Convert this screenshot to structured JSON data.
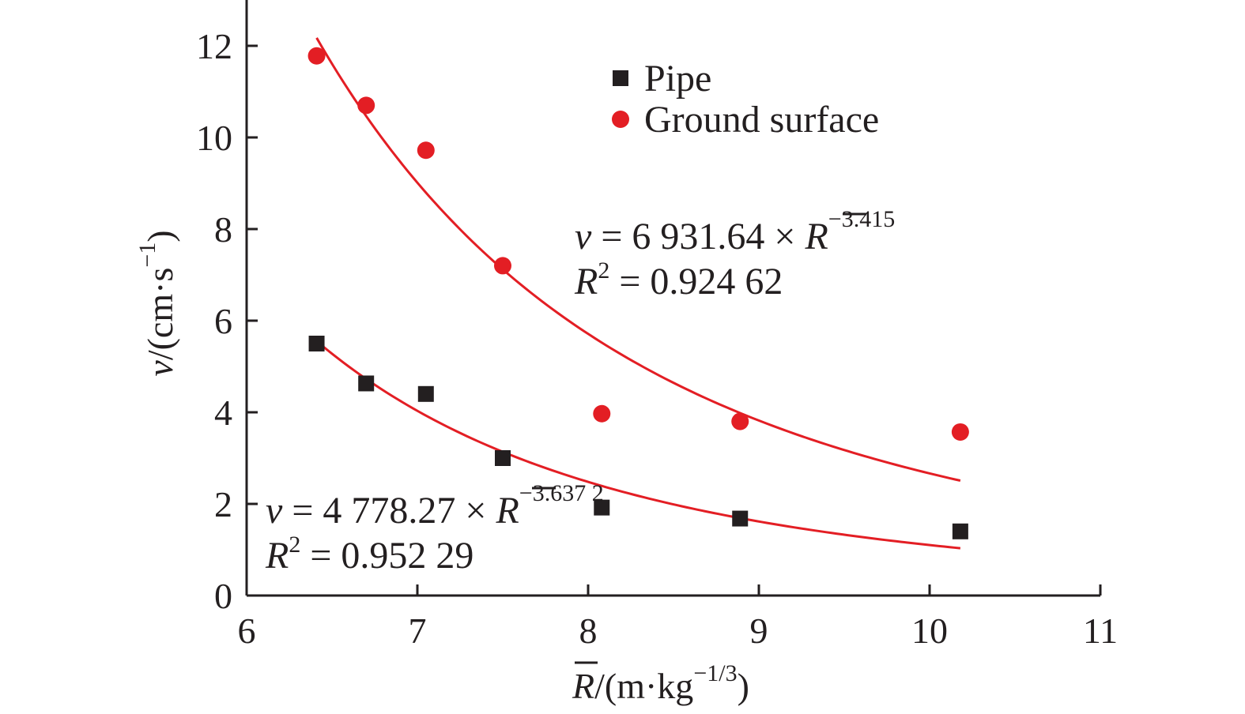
{
  "chart_data": {
    "type": "scatter",
    "xlabel": {
      "symbol": "R",
      "rest": "/(m·kg",
      "exp": "−1/3",
      "close": ")"
    },
    "ylabel": {
      "symbol": "v",
      "rest": "/(cm·s",
      "exp": "−1",
      "close": ")"
    },
    "xlim": [
      6,
      11
    ],
    "ylim": [
      0,
      13
    ],
    "xticks": [
      "6",
      "7",
      "8",
      "9",
      "10",
      "11"
    ],
    "yticks": [
      "0",
      "2",
      "4",
      "6",
      "8",
      "10",
      "12"
    ],
    "grid": false,
    "legend_position": "top-right",
    "series": [
      {
        "name": "Pipe",
        "marker": "square",
        "color": "#231f20",
        "x": [
          6.41,
          6.7,
          7.05,
          7.5,
          8.08,
          8.89,
          10.18
        ],
        "y": [
          5.5,
          4.63,
          4.4,
          3.0,
          1.92,
          1.68,
          1.4
        ],
        "fit": {
          "a": 4778.27,
          "b": -3.6372,
          "x_range": [
            6.41,
            10.18
          ]
        },
        "equation": {
          "v": "v",
          "eq": " = 4 778.27 × ",
          "R": "R",
          "exp": "−3.637 2"
        },
        "r2": {
          "R": "R",
          "sq": "2",
          "eq": " = 0.952 29"
        }
      },
      {
        "name": "Ground surface",
        "marker": "circle",
        "color": "#e31e24",
        "x": [
          6.41,
          6.7,
          7.05,
          7.5,
          8.08,
          8.89,
          10.18
        ],
        "y": [
          11.78,
          10.7,
          9.72,
          7.2,
          3.97,
          3.8,
          3.57
        ],
        "fit": {
          "a": 6931.64,
          "b": -3.415,
          "x_range": [
            6.41,
            10.18
          ]
        },
        "equation": {
          "v": "v",
          "eq": " = 6 931.64 × ",
          "R": "R",
          "exp": "−3.415"
        },
        "r2": {
          "R": "R",
          "sq": "2",
          "eq": " = 0.924 62"
        }
      }
    ],
    "fit_line_color": "#e31e24"
  }
}
